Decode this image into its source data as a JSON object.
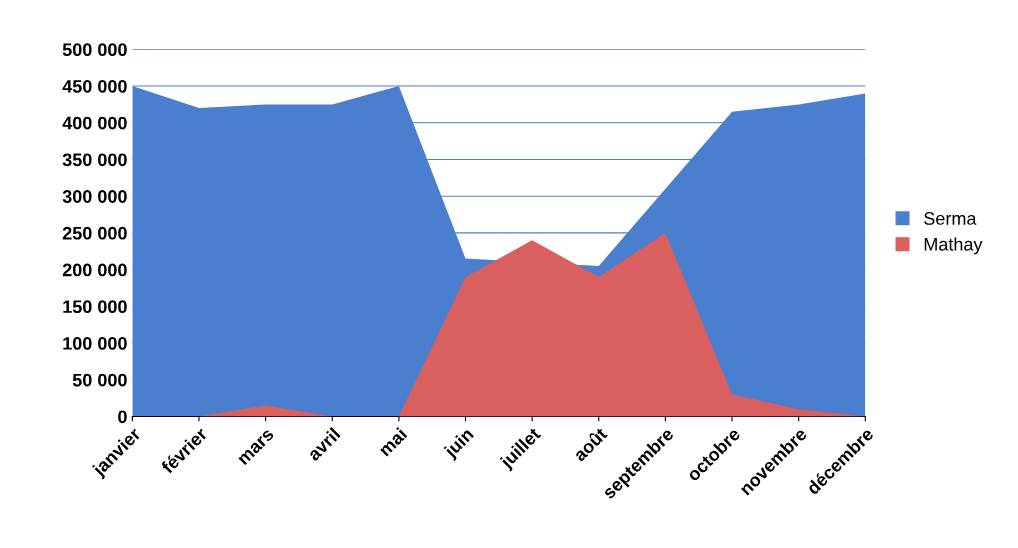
{
  "chart_data": {
    "type": "area",
    "categories": [
      "janvier",
      "février",
      "mars",
      "avril",
      "mai",
      "juin",
      "juillet",
      "août",
      "septembre",
      "octobre",
      "novembre",
      "décembre"
    ],
    "series": [
      {
        "name": "Serma",
        "color": "#4a7fd0",
        "values": [
          450000,
          420000,
          425000,
          425000,
          450000,
          215000,
          null,
          205000,
          null,
          415000,
          425000,
          440000
        ]
      },
      {
        "name": "Mathay",
        "color": "#d9605e",
        "values": [
          0,
          0,
          15000,
          0,
          0,
          190000,
          240000,
          190000,
          250000,
          30000,
          10000,
          0
        ]
      }
    ],
    "ylim": [
      0,
      500000
    ],
    "yticks": [
      {
        "value": 0,
        "label": "0"
      },
      {
        "value": 50000,
        "label": "50 000"
      },
      {
        "value": 100000,
        "label": "100 000"
      },
      {
        "value": 150000,
        "label": "150 000"
      },
      {
        "value": 200000,
        "label": "200 000"
      },
      {
        "value": 250000,
        "label": "250 000"
      },
      {
        "value": 300000,
        "label": "300 000"
      },
      {
        "value": 350000,
        "label": "350 000"
      },
      {
        "value": 400000,
        "label": "400 000"
      },
      {
        "value": 450000,
        "label": "450 000"
      },
      {
        "value": 500000,
        "label": "500 000"
      }
    ],
    "grid": "y",
    "legend": "right"
  }
}
